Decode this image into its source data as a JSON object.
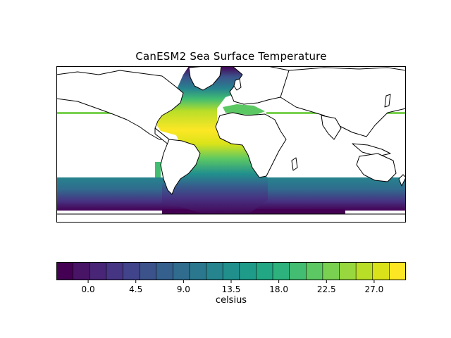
{
  "figure": {
    "title": "CanESM2 Sea Surface Temperature"
  },
  "map": {
    "projection": "PlateCarree",
    "extent_lon": [
      -180,
      180
    ],
    "extent_lat": [
      -60,
      90
    ],
    "coastlines": true,
    "field": "sea surface temperature",
    "colormap": "viridis"
  },
  "colorbar": {
    "label": "celsius",
    "min": -3.0,
    "max": 30.0,
    "step": 1.5,
    "orientation": "horizontal",
    "tick_values": [
      0.0,
      4.5,
      9.0,
      13.5,
      18.0,
      22.5,
      27.0
    ],
    "tick_labels": [
      "0.0",
      "4.5",
      "9.0",
      "13.5",
      "18.0",
      "22.5",
      "27.0"
    ],
    "colors": [
      "#440154",
      "#471466",
      "#482576",
      "#463583",
      "#41448a",
      "#3c528b",
      "#355f8d",
      "#306c8e",
      "#2b788e",
      "#26848e",
      "#21908d",
      "#1f9b8a",
      "#21a784",
      "#2db27d",
      "#42bd71",
      "#5cc863",
      "#7ad151",
      "#98d83e",
      "#b9de28",
      "#dae319",
      "#fde725"
    ]
  }
}
